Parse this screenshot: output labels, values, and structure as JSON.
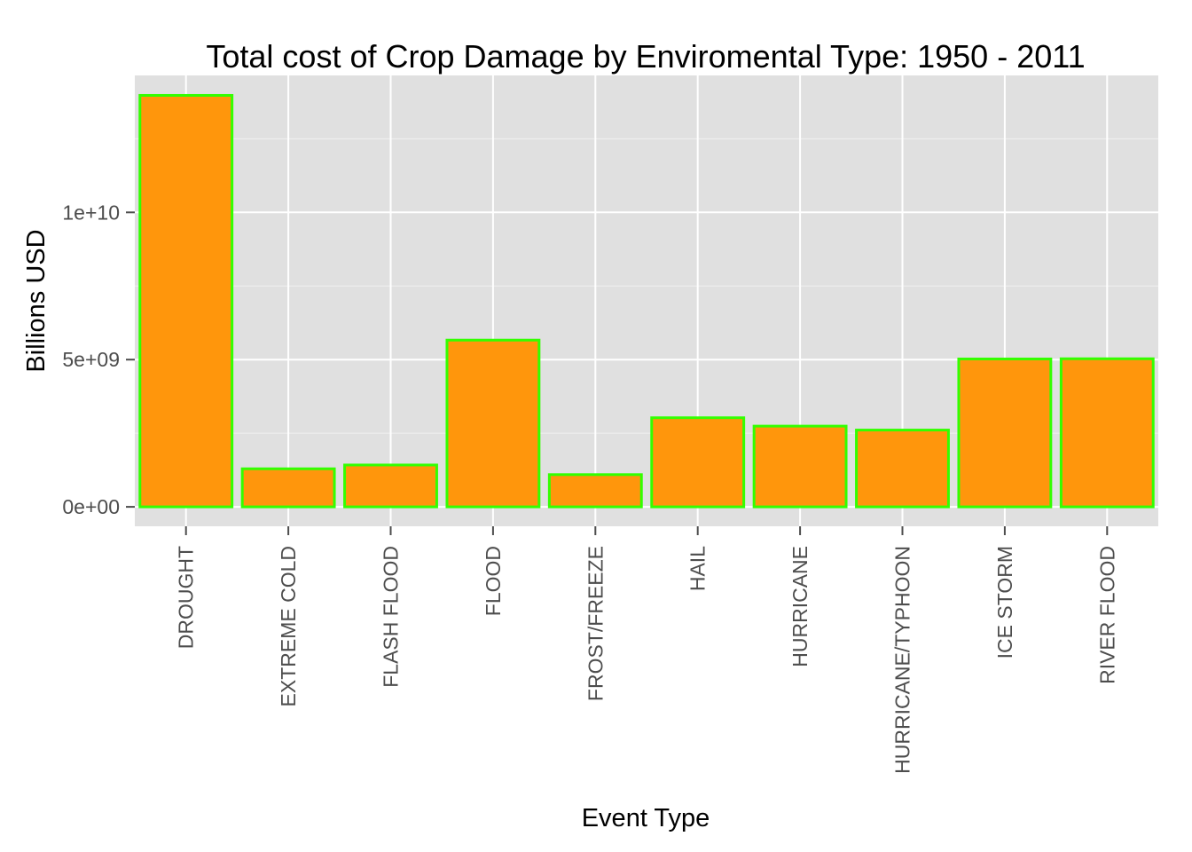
{
  "chart_data": {
    "type": "bar",
    "title": "Total cost of Crop Damage by Enviromental Type: 1950 -  2011",
    "xlabel": "Event Type",
    "ylabel": "Billions USD",
    "categories": [
      "DROUGHT",
      "EXTREME COLD",
      "FLASH FLOOD",
      "FLOOD",
      "FROST/FREEZE",
      "HAIL",
      "HURRICANE",
      "HURRICANE/TYPHOON",
      "ICE STORM",
      "RIVER FLOOD"
    ],
    "values": [
      13972566000,
      1292973000,
      1421317100,
      5661968450,
      1094086000,
      3025954473,
      2741910000,
      2607872800,
      5022113500,
      5029459000
    ],
    "ylim": [
      -660000000,
      14650000000
    ],
    "yticks": [
      0,
      5000000000,
      10000000000
    ],
    "ytick_labels": [
      "0e+00",
      "5e+09",
      "1e+10"
    ],
    "yminor": [
      2500000000,
      7500000000,
      12500000000
    ],
    "grid": true,
    "colors": {
      "panel": "#e0e0e0",
      "grid": "#ffffff",
      "bar_fill": "#ff960c",
      "bar_outline": "#33ff00",
      "tick": "#4d4d4d"
    }
  }
}
